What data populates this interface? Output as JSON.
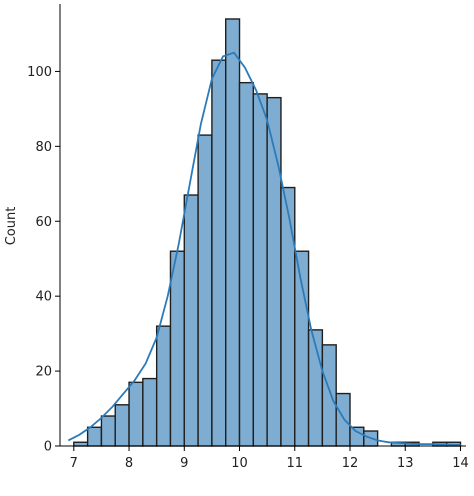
{
  "chart_data": {
    "type": "bar",
    "title": "",
    "xlabel": "",
    "ylabel": "Count",
    "xlim": [
      6.75,
      14.1
    ],
    "ylim": [
      0,
      118
    ],
    "xticks": [
      7,
      8,
      9,
      10,
      11,
      12,
      13,
      14
    ],
    "yticks": [
      0,
      20,
      40,
      60,
      80,
      100
    ],
    "grid": false,
    "bins": [
      {
        "x0": 7.0,
        "x1": 7.25,
        "count": 1
      },
      {
        "x0": 7.25,
        "x1": 7.5,
        "count": 5
      },
      {
        "x0": 7.5,
        "x1": 7.75,
        "count": 8
      },
      {
        "x0": 7.75,
        "x1": 8.0,
        "count": 11
      },
      {
        "x0": 8.0,
        "x1": 8.25,
        "count": 17
      },
      {
        "x0": 8.25,
        "x1": 8.5,
        "count": 18
      },
      {
        "x0": 8.5,
        "x1": 8.75,
        "count": 32
      },
      {
        "x0": 8.75,
        "x1": 9.0,
        "count": 52
      },
      {
        "x0": 9.0,
        "x1": 9.25,
        "count": 67
      },
      {
        "x0": 9.25,
        "x1": 9.5,
        "count": 83
      },
      {
        "x0": 9.5,
        "x1": 9.75,
        "count": 103
      },
      {
        "x0": 9.75,
        "x1": 10.0,
        "count": 114
      },
      {
        "x0": 10.0,
        "x1": 10.25,
        "count": 97
      },
      {
        "x0": 10.25,
        "x1": 10.5,
        "count": 94
      },
      {
        "x0": 10.5,
        "x1": 10.75,
        "count": 93
      },
      {
        "x0": 10.75,
        "x1": 11.0,
        "count": 69
      },
      {
        "x0": 11.0,
        "x1": 11.25,
        "count": 52
      },
      {
        "x0": 11.25,
        "x1": 11.5,
        "count": 31
      },
      {
        "x0": 11.5,
        "x1": 11.75,
        "count": 27
      },
      {
        "x0": 11.75,
        "x1": 12.0,
        "count": 14
      },
      {
        "x0": 12.0,
        "x1": 12.25,
        "count": 5
      },
      {
        "x0": 12.25,
        "x1": 12.5,
        "count": 4
      },
      {
        "x0": 12.5,
        "x1": 12.75,
        "count": 0
      },
      {
        "x0": 12.75,
        "x1": 13.0,
        "count": 1
      },
      {
        "x0": 13.0,
        "x1": 13.25,
        "count": 1
      },
      {
        "x0": 13.25,
        "x1": 13.5,
        "count": 0
      },
      {
        "x0": 13.5,
        "x1": 13.75,
        "count": 1
      },
      {
        "x0": 13.75,
        "x1": 14.0,
        "count": 1
      }
    ],
    "kde": {
      "x": [
        6.9,
        7.1,
        7.3,
        7.5,
        7.7,
        7.9,
        8.1,
        8.3,
        8.5,
        8.7,
        8.9,
        9.1,
        9.3,
        9.5,
        9.7,
        9.9,
        10.1,
        10.3,
        10.5,
        10.7,
        10.9,
        11.1,
        11.3,
        11.5,
        11.7,
        11.9,
        12.1,
        12.3,
        12.5,
        12.7,
        12.9,
        13.1,
        13.3,
        13.5,
        13.7,
        13.9,
        14.0
      ],
      "y": [
        1.5,
        3,
        5,
        7.5,
        10.5,
        14,
        17.5,
        22,
        29,
        40,
        54,
        70,
        86,
        98,
        104,
        105,
        101,
        95,
        87,
        75,
        61,
        45,
        31,
        20,
        12,
        7,
        4,
        2.5,
        1.5,
        1,
        0.8,
        0.6,
        0.5,
        0.5,
        0.4,
        0.3,
        0.3
      ]
    },
    "colors": {
      "bar_fill": "#7fadd1",
      "kde_line": "#2b7bba"
    }
  }
}
